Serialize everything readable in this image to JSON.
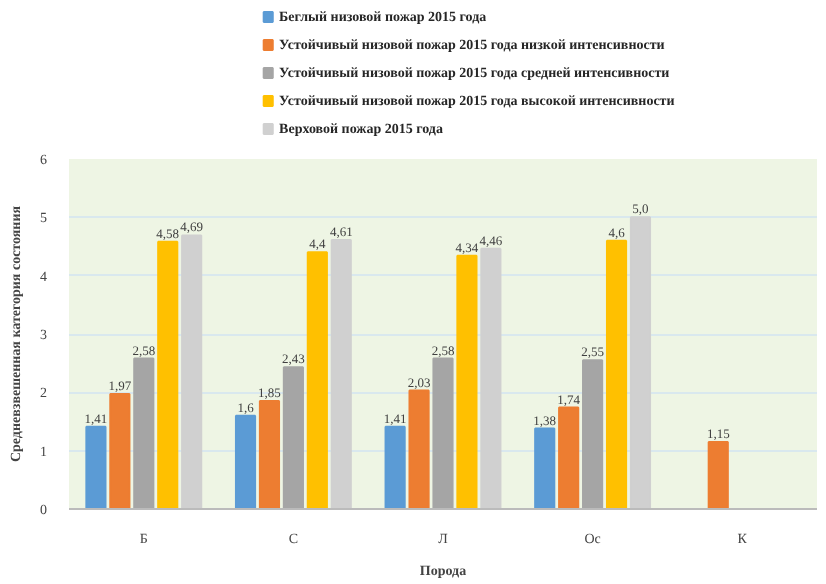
{
  "chart_data": {
    "type": "bar",
    "xlabel": "Порода",
    "ylabel": "Средневзвешенная категория состояния",
    "categories": [
      "Б",
      "С",
      "Л",
      "Ос",
      "К"
    ],
    "series": [
      {
        "name": "Беглый низовой пожар 2015 года",
        "color": "#5b9bd5",
        "values": [
          1.41,
          1.6,
          1.41,
          1.38,
          null
        ],
        "value_labels": [
          "1,41",
          "1,6",
          "1,41",
          "1,38",
          null
        ]
      },
      {
        "name": "Устойчивый низовой пожар 2015 года низкой интенсивности",
        "color": "#ed7d31",
        "values": [
          1.97,
          1.85,
          2.03,
          1.74,
          1.15
        ],
        "value_labels": [
          "1,97",
          "1,85",
          "2,03",
          "1,74",
          "1,15"
        ]
      },
      {
        "name": "Устойчивый низовой пожар 2015 года средней интенсивности",
        "color": "#a5a5a5",
        "values": [
          2.58,
          2.43,
          2.58,
          2.55,
          null
        ],
        "value_labels": [
          "2,58",
          "2,43",
          "2,58",
          "2,55",
          null
        ]
      },
      {
        "name": "Устойчивый низовой пожар 2015 года высокой интенсивности",
        "color": "#ffc000",
        "values": [
          4.58,
          4.4,
          4.34,
          4.6,
          null
        ],
        "value_labels": [
          "4,58",
          "4,4",
          "4,34",
          "4,6",
          null
        ]
      },
      {
        "name": "Верховой пожар 2015 года",
        "color": "#d0d0d0",
        "values": [
          4.69,
          4.61,
          4.46,
          5.0,
          null
        ],
        "value_labels": [
          "4,69",
          "4,61",
          "4,46",
          "5,0",
          null
        ]
      }
    ],
    "ylim": [
      0,
      6
    ],
    "yticks": [
      0,
      1,
      2,
      3,
      4,
      5,
      6
    ],
    "grid": "y",
    "legend": "top"
  }
}
